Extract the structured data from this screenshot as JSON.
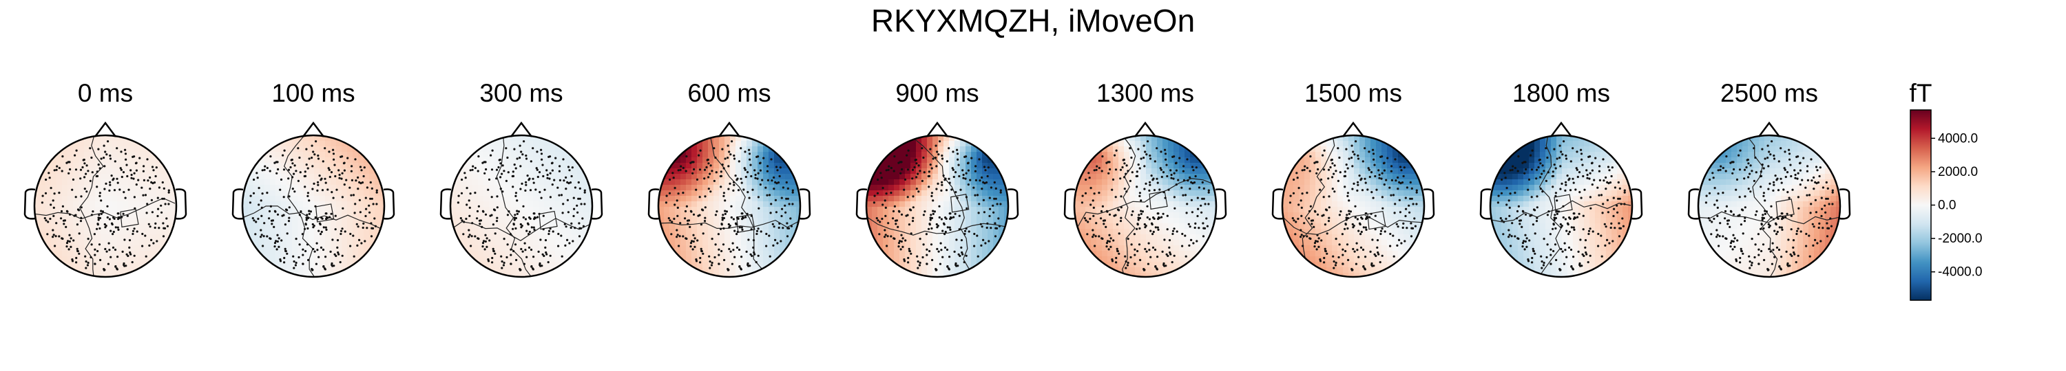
{
  "chart_data": {
    "type": "topomap",
    "title": "RKYXMQZH, iMoveOn",
    "panels": [
      {
        "label": "0 ms",
        "pattern": {
          "left": 0.15,
          "right": 0.05,
          "front": 0.1,
          "back": 0.1
        }
      },
      {
        "label": "100 ms",
        "pattern": {
          "left": -0.2,
          "right": 0.25,
          "front": 0.25,
          "back": 0.0
        }
      },
      {
        "label": "300 ms",
        "pattern": {
          "left": 0.1,
          "right": -0.1,
          "front": -0.1,
          "back": 0.1
        }
      },
      {
        "label": "600 ms",
        "pattern": {
          "left": 0.45,
          "right": -0.5,
          "front": 0.3,
          "back": 0.1,
          "leftFront": 0.6,
          "rightFront": -0.9
        }
      },
      {
        "label": "900 ms",
        "pattern": {
          "left": 0.6,
          "right": -0.6,
          "front": 0.5,
          "back": 0.0,
          "leftFront": 1.0,
          "rightFront": -1.0
        }
      },
      {
        "label": "1300 ms",
        "pattern": {
          "left": 0.35,
          "right": -0.2,
          "front": -0.4,
          "back": 0.3,
          "leftFront": 0.7,
          "rightFront": -0.6
        }
      },
      {
        "label": "1500 ms",
        "pattern": {
          "left": 0.4,
          "right": -0.3,
          "front": -0.4,
          "back": 0.3,
          "leftFront": 0.4,
          "rightFront": -0.6
        }
      },
      {
        "label": "1800 ms",
        "pattern": {
          "left": -0.4,
          "right": 0.5,
          "front": -0.5,
          "back": -0.1,
          "leftFront": -0.9,
          "rightFront": -0.2
        }
      },
      {
        "label": "2500 ms",
        "pattern": {
          "left": -0.1,
          "right": 0.6,
          "front": -0.4,
          "back": 0.1,
          "leftFront": -0.3,
          "rightFront": -0.3
        }
      }
    ],
    "colorbar": {
      "unit": "fT",
      "ticks": [
        "4000.0",
        "2000.0",
        "0.0",
        "-2000.0",
        "-4000.0"
      ],
      "tick_values": [
        4000,
        2000,
        0,
        -2000,
        -4000
      ],
      "range": [
        -5700,
        5700
      ],
      "colormap": [
        "#053061",
        "#2166ac",
        "#4393c3",
        "#92c5de",
        "#d1e5f0",
        "#f7f7f7",
        "#fddbc7",
        "#f4a582",
        "#d6604d",
        "#b2182b",
        "#67001f"
      ]
    }
  }
}
